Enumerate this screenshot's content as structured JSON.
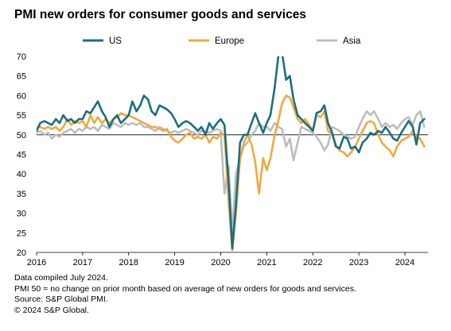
{
  "title": "PMI new orders for consumer goods and services",
  "footnotes": [
    "Data compiled July 2024.",
    "PMI 50 = no change on prior month based on average of new orders for goods and services.",
    "Source: S&P Global PMI.",
    "© 2024 S&P Global."
  ],
  "chart_data": {
    "type": "line",
    "title": "PMI new orders for consumer goods and services",
    "xlabel": "",
    "ylabel": "",
    "xlim": [
      2016.0,
      2024.5
    ],
    "ylim": [
      20,
      70
    ],
    "x_ticks": [
      2016,
      2017,
      2018,
      2019,
      2020,
      2021,
      2022,
      2023,
      2024
    ],
    "y_ticks": [
      20,
      25,
      30,
      35,
      40,
      45,
      50,
      55,
      60,
      65,
      70
    ],
    "reference_line": 50,
    "legend_position": "top",
    "series": [
      {
        "name": "US",
        "color": "#1b6f80",
        "points": [
          [
            2016.0,
            51
          ],
          [
            2016.08,
            53
          ],
          [
            2016.17,
            53.5
          ],
          [
            2016.25,
            53
          ],
          [
            2016.33,
            52.5
          ],
          [
            2016.42,
            54
          ],
          [
            2016.5,
            53
          ],
          [
            2016.58,
            55
          ],
          [
            2016.67,
            53.5
          ],
          [
            2016.75,
            54
          ],
          [
            2016.83,
            53
          ],
          [
            2016.92,
            54
          ],
          [
            2017.0,
            54
          ],
          [
            2017.08,
            56
          ],
          [
            2017.17,
            55.5
          ],
          [
            2017.25,
            57
          ],
          [
            2017.33,
            58.5
          ],
          [
            2017.42,
            56
          ],
          [
            2017.5,
            54.5
          ],
          [
            2017.58,
            52
          ],
          [
            2017.67,
            54
          ],
          [
            2017.75,
            55
          ],
          [
            2017.83,
            53
          ],
          [
            2017.92,
            54
          ],
          [
            2018.0,
            55
          ],
          [
            2018.08,
            58.5
          ],
          [
            2018.17,
            56
          ],
          [
            2018.25,
            57.5
          ],
          [
            2018.33,
            60
          ],
          [
            2018.42,
            59
          ],
          [
            2018.5,
            56
          ],
          [
            2018.58,
            55
          ],
          [
            2018.67,
            57.5
          ],
          [
            2018.75,
            57
          ],
          [
            2018.83,
            56.5
          ],
          [
            2018.92,
            55.5
          ],
          [
            2019.0,
            54
          ],
          [
            2019.08,
            52
          ],
          [
            2019.17,
            53
          ],
          [
            2019.25,
            53.5
          ],
          [
            2019.33,
            53
          ],
          [
            2019.42,
            52
          ],
          [
            2019.5,
            51
          ],
          [
            2019.58,
            52
          ],
          [
            2019.67,
            50
          ],
          [
            2019.75,
            53
          ],
          [
            2019.83,
            51.5
          ],
          [
            2019.92,
            53
          ],
          [
            2020.0,
            54
          ],
          [
            2020.08,
            52.5
          ],
          [
            2020.17,
            38
          ],
          [
            2020.25,
            21
          ],
          [
            2020.33,
            32
          ],
          [
            2020.42,
            48
          ],
          [
            2020.5,
            50
          ],
          [
            2020.58,
            50
          ],
          [
            2020.67,
            53
          ],
          [
            2020.75,
            55.5
          ],
          [
            2020.83,
            53
          ],
          [
            2020.92,
            50.5
          ],
          [
            2021.0,
            53
          ],
          [
            2021.08,
            55
          ],
          [
            2021.17,
            62
          ],
          [
            2021.25,
            70
          ],
          [
            2021.33,
            71
          ],
          [
            2021.42,
            64
          ],
          [
            2021.5,
            65
          ],
          [
            2021.58,
            59
          ],
          [
            2021.67,
            55
          ],
          [
            2021.75,
            54
          ],
          [
            2021.83,
            53
          ],
          [
            2021.92,
            52
          ],
          [
            2022.0,
            51
          ],
          [
            2022.08,
            55.5
          ],
          [
            2022.17,
            56
          ],
          [
            2022.25,
            57.5
          ],
          [
            2022.33,
            53
          ],
          [
            2022.42,
            50.5
          ],
          [
            2022.5,
            47
          ],
          [
            2022.58,
            46.5
          ],
          [
            2022.67,
            49.5
          ],
          [
            2022.75,
            49
          ],
          [
            2022.83,
            46.5
          ],
          [
            2022.92,
            47
          ],
          [
            2023.0,
            45.5
          ],
          [
            2023.08,
            48
          ],
          [
            2023.17,
            49
          ],
          [
            2023.25,
            50.5
          ],
          [
            2023.33,
            50
          ],
          [
            2023.42,
            51
          ],
          [
            2023.5,
            50.5
          ],
          [
            2023.58,
            52
          ],
          [
            2023.67,
            50.5
          ],
          [
            2023.75,
            49
          ],
          [
            2023.83,
            48.5
          ],
          [
            2023.92,
            50.5
          ],
          [
            2024.0,
            52
          ],
          [
            2024.08,
            53.5
          ],
          [
            2024.17,
            52
          ],
          [
            2024.25,
            47.5
          ],
          [
            2024.33,
            53
          ],
          [
            2024.42,
            54
          ]
        ]
      },
      {
        "name": "Europe",
        "color": "#f0a93e",
        "points": [
          [
            2016.0,
            52
          ],
          [
            2016.08,
            52
          ],
          [
            2016.17,
            51.5
          ],
          [
            2016.25,
            52
          ],
          [
            2016.33,
            51.5
          ],
          [
            2016.42,
            52
          ],
          [
            2016.5,
            51
          ],
          [
            2016.58,
            52
          ],
          [
            2016.67,
            54
          ],
          [
            2016.75,
            52.5
          ],
          [
            2016.83,
            53.5
          ],
          [
            2016.92,
            53
          ],
          [
            2017.0,
            53.5
          ],
          [
            2017.08,
            52
          ],
          [
            2017.17,
            55
          ],
          [
            2017.25,
            53
          ],
          [
            2017.33,
            54.5
          ],
          [
            2017.42,
            53
          ],
          [
            2017.5,
            54
          ],
          [
            2017.58,
            53
          ],
          [
            2017.67,
            54
          ],
          [
            2017.75,
            54.5
          ],
          [
            2017.83,
            55.5
          ],
          [
            2017.92,
            55
          ],
          [
            2018.0,
            55
          ],
          [
            2018.08,
            54.5
          ],
          [
            2018.17,
            54
          ],
          [
            2018.25,
            53.5
          ],
          [
            2018.33,
            53
          ],
          [
            2018.42,
            52.5
          ],
          [
            2018.5,
            52
          ],
          [
            2018.58,
            52
          ],
          [
            2018.67,
            51.5
          ],
          [
            2018.75,
            51
          ],
          [
            2018.83,
            51.5
          ],
          [
            2018.92,
            49.5
          ],
          [
            2019.0,
            48.5
          ],
          [
            2019.08,
            48
          ],
          [
            2019.17,
            49
          ],
          [
            2019.25,
            50
          ],
          [
            2019.33,
            50.5
          ],
          [
            2019.42,
            49
          ],
          [
            2019.5,
            49.5
          ],
          [
            2019.58,
            49
          ],
          [
            2019.67,
            50
          ],
          [
            2019.75,
            48
          ],
          [
            2019.83,
            49.5
          ],
          [
            2019.92,
            49
          ],
          [
            2020.0,
            50.5
          ],
          [
            2020.08,
            50
          ],
          [
            2020.17,
            33
          ],
          [
            2020.25,
            20.5
          ],
          [
            2020.33,
            30
          ],
          [
            2020.42,
            44
          ],
          [
            2020.5,
            48
          ],
          [
            2020.58,
            50
          ],
          [
            2020.67,
            47.5
          ],
          [
            2020.75,
            43
          ],
          [
            2020.83,
            35
          ],
          [
            2020.92,
            44
          ],
          [
            2021.0,
            41
          ],
          [
            2021.08,
            44
          ],
          [
            2021.17,
            50
          ],
          [
            2021.25,
            53.5
          ],
          [
            2021.33,
            58
          ],
          [
            2021.42,
            60
          ],
          [
            2021.5,
            59.5
          ],
          [
            2021.58,
            57
          ],
          [
            2021.67,
            54
          ],
          [
            2021.75,
            53
          ],
          [
            2021.83,
            54
          ],
          [
            2021.92,
            52.5
          ],
          [
            2022.0,
            51
          ],
          [
            2022.08,
            55
          ],
          [
            2022.17,
            54.5
          ],
          [
            2022.25,
            56
          ],
          [
            2022.33,
            51
          ],
          [
            2022.42,
            50
          ],
          [
            2022.5,
            47.5
          ],
          [
            2022.58,
            46
          ],
          [
            2022.67,
            45.5
          ],
          [
            2022.75,
            44.5
          ],
          [
            2022.83,
            45.5
          ],
          [
            2022.92,
            47
          ],
          [
            2023.0,
            49
          ],
          [
            2023.08,
            51
          ],
          [
            2023.17,
            53
          ],
          [
            2023.25,
            53.5
          ],
          [
            2023.33,
            53
          ],
          [
            2023.42,
            50
          ],
          [
            2023.5,
            48
          ],
          [
            2023.58,
            47
          ],
          [
            2023.67,
            46
          ],
          [
            2023.75,
            44.5
          ],
          [
            2023.83,
            47
          ],
          [
            2023.92,
            48.5
          ],
          [
            2024.0,
            49
          ],
          [
            2024.08,
            49.5
          ],
          [
            2024.17,
            51
          ],
          [
            2024.25,
            49.5
          ],
          [
            2024.33,
            49
          ],
          [
            2024.42,
            47
          ]
        ]
      },
      {
        "name": "Asia",
        "color": "#bdbdbd",
        "points": [
          [
            2016.0,
            50.5
          ],
          [
            2016.08,
            51
          ],
          [
            2016.17,
            50
          ],
          [
            2016.25,
            50.5
          ],
          [
            2016.33,
            49
          ],
          [
            2016.42,
            50
          ],
          [
            2016.5,
            49.5
          ],
          [
            2016.58,
            50.5
          ],
          [
            2016.67,
            51
          ],
          [
            2016.75,
            51.5
          ],
          [
            2016.83,
            50.5
          ],
          [
            2016.92,
            51.5
          ],
          [
            2017.0,
            51
          ],
          [
            2017.08,
            52
          ],
          [
            2017.17,
            51.5
          ],
          [
            2017.25,
            52
          ],
          [
            2017.33,
            51
          ],
          [
            2017.42,
            52.5
          ],
          [
            2017.5,
            52
          ],
          [
            2017.58,
            51.5
          ],
          [
            2017.67,
            53
          ],
          [
            2017.75,
            52.5
          ],
          [
            2017.83,
            52
          ],
          [
            2017.92,
            53
          ],
          [
            2018.0,
            52.5
          ],
          [
            2018.08,
            53
          ],
          [
            2018.17,
            52.5
          ],
          [
            2018.25,
            53
          ],
          [
            2018.33,
            52
          ],
          [
            2018.42,
            52
          ],
          [
            2018.5,
            51.5
          ],
          [
            2018.58,
            51
          ],
          [
            2018.67,
            52
          ],
          [
            2018.75,
            51.5
          ],
          [
            2018.83,
            51
          ],
          [
            2018.92,
            50.5
          ],
          [
            2019.0,
            51
          ],
          [
            2019.08,
            50.5
          ],
          [
            2019.17,
            51
          ],
          [
            2019.25,
            51.5
          ],
          [
            2019.33,
            51
          ],
          [
            2019.42,
            50.5
          ],
          [
            2019.5,
            50
          ],
          [
            2019.58,
            51
          ],
          [
            2019.67,
            51
          ],
          [
            2019.75,
            50.5
          ],
          [
            2019.83,
            51
          ],
          [
            2019.92,
            51.5
          ],
          [
            2020.0,
            51
          ],
          [
            2020.08,
            35
          ],
          [
            2020.17,
            42
          ],
          [
            2020.25,
            25
          ],
          [
            2020.33,
            40
          ],
          [
            2020.42,
            44
          ],
          [
            2020.5,
            47
          ],
          [
            2020.58,
            48
          ],
          [
            2020.67,
            50
          ],
          [
            2020.75,
            51
          ],
          [
            2020.83,
            53
          ],
          [
            2020.92,
            52
          ],
          [
            2021.0,
            52
          ],
          [
            2021.08,
            51
          ],
          [
            2021.17,
            53
          ],
          [
            2021.25,
            52
          ],
          [
            2021.33,
            51.5
          ],
          [
            2021.42,
            47
          ],
          [
            2021.5,
            49
          ],
          [
            2021.58,
            43.5
          ],
          [
            2021.67,
            48
          ],
          [
            2021.75,
            52
          ],
          [
            2021.83,
            51.5
          ],
          [
            2021.92,
            51
          ],
          [
            2022.0,
            50.5
          ],
          [
            2022.08,
            49.5
          ],
          [
            2022.17,
            48
          ],
          [
            2022.25,
            46
          ],
          [
            2022.33,
            47.5
          ],
          [
            2022.42,
            52
          ],
          [
            2022.5,
            51.5
          ],
          [
            2022.58,
            51
          ],
          [
            2022.67,
            50
          ],
          [
            2022.75,
            49.5
          ],
          [
            2022.83,
            49
          ],
          [
            2022.92,
            49.5
          ],
          [
            2023.0,
            52
          ],
          [
            2023.08,
            54
          ],
          [
            2023.17,
            56
          ],
          [
            2023.25,
            55
          ],
          [
            2023.33,
            56
          ],
          [
            2023.42,
            54
          ],
          [
            2023.5,
            52
          ],
          [
            2023.58,
            53
          ],
          [
            2023.67,
            52
          ],
          [
            2023.75,
            52.5
          ],
          [
            2023.83,
            51.5
          ],
          [
            2023.92,
            53
          ],
          [
            2024.0,
            54
          ],
          [
            2024.08,
            54.5
          ],
          [
            2024.17,
            52.5
          ],
          [
            2024.25,
            55
          ],
          [
            2024.33,
            56
          ],
          [
            2024.42,
            52
          ]
        ]
      }
    ]
  }
}
